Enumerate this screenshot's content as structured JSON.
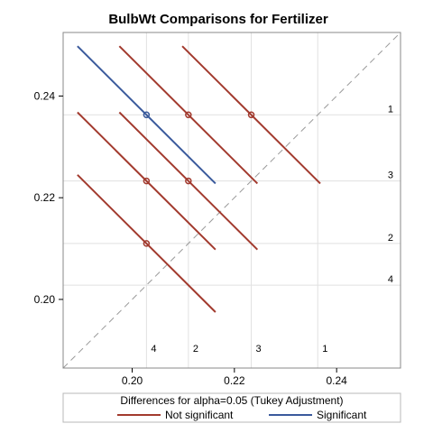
{
  "chart_data": {
    "type": "line",
    "title": "BulbWt Comparisons for Fertilizer",
    "xlim": [
      0.1865,
      0.2525
    ],
    "ylim": [
      0.1865,
      0.2525
    ],
    "xticks": [
      0.2,
      0.22,
      0.24
    ],
    "yticks": [
      0.2,
      0.22,
      0.24
    ],
    "x_tick_labels": [
      "0.20",
      "0.22",
      "0.24"
    ],
    "y_tick_labels": [
      "0.20",
      "0.22",
      "0.24"
    ],
    "levels": [
      {
        "label": "1",
        "mean": 0.2363
      },
      {
        "label": "3",
        "mean": 0.2233
      },
      {
        "label": "2",
        "mean": 0.211
      },
      {
        "label": "4",
        "mean": 0.2028
      }
    ],
    "diagonal": true,
    "grid": true,
    "comparisons": [
      {
        "x": 0.2028,
        "y": 0.2363,
        "x_start": 0.1893,
        "y_start": 0.2498,
        "x_end": 0.2163,
        "y_end": 0.2228,
        "status": "Significant"
      },
      {
        "x": 0.211,
        "y": 0.2363,
        "x_start": 0.1975,
        "y_start": 0.2498,
        "x_end": 0.2245,
        "y_end": 0.2228,
        "status": "Not significant"
      },
      {
        "x": 0.2233,
        "y": 0.2363,
        "x_start": 0.2098,
        "y_start": 0.2498,
        "x_end": 0.2368,
        "y_end": 0.2228,
        "status": "Not significant"
      },
      {
        "x": 0.2028,
        "y": 0.2233,
        "x_start": 0.1893,
        "y_start": 0.2368,
        "x_end": 0.2163,
        "y_end": 0.2098,
        "status": "Not significant"
      },
      {
        "x": 0.211,
        "y": 0.2233,
        "x_start": 0.1975,
        "y_start": 0.2368,
        "x_end": 0.2245,
        "y_end": 0.2098,
        "status": "Not significant"
      },
      {
        "x": 0.2028,
        "y": 0.211,
        "x_start": 0.1893,
        "y_start": 0.2245,
        "x_end": 0.2163,
        "y_end": 0.1975,
        "status": "Not significant"
      }
    ],
    "legend": {
      "title": "Differences for alpha=0.05 (Tukey Adjustment)",
      "placement": "bottom",
      "entries": [
        {
          "name": "Not significant",
          "color": "#a23a2e"
        },
        {
          "name": "Significant",
          "color": "#3a5a9c"
        }
      ]
    },
    "colors": {
      "not_significant": "#a23a2e",
      "significant": "#3a5a9c",
      "grid": "#e1e1e1",
      "diagonal": "#9a9a9a",
      "frame": "#888888"
    }
  }
}
